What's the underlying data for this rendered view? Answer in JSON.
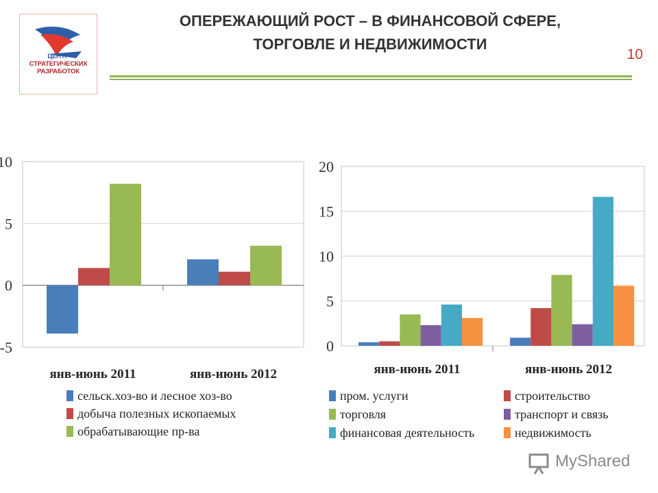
{
  "slide": {
    "title_line1": "ОПЕРЕЖАЮЩИЙ РОСТ – В ФИНАНСОВОЙ СФЕРЕ,",
    "title_line2": "ТОРГОВЛЕ И НЕДВИЖИМОСТИ",
    "page_number": "10",
    "logo": {
      "line1": "ЦЕНТР",
      "line2": "СТРАТЕГИЧЕСКИХ",
      "line3": "РАЗРАБОТОК"
    },
    "watermark": "MyShared"
  },
  "colors": {
    "blue": "#4a7ebb",
    "red": "#be4b48",
    "green": "#98b954",
    "purple": "#7d5fa0",
    "teal": "#46aac5",
    "orange": "#f69240",
    "accent_line": "#8cb050",
    "page_number": "#c0392b"
  },
  "chart_data": [
    {
      "type": "bar",
      "categories": [
        "янв-июнь 2011",
        "янв-июнь 2012"
      ],
      "ylim": [
        -5,
        10
      ],
      "yticks": [
        "-5",
        "0",
        "5",
        "10"
      ],
      "grid": true,
      "legend_position": "bottom",
      "series": [
        {
          "name": "сельск.хоз-во и лесное хоз-во",
          "color": "#4a7ebb",
          "values": [
            -3.9,
            2.1
          ]
        },
        {
          "name": "добыча полезных ископаемых",
          "color": "#be4b48",
          "values": [
            1.4,
            1.1
          ]
        },
        {
          "name": "обрабатывающие пр-ва",
          "color": "#98b954",
          "values": [
            8.2,
            3.2
          ]
        }
      ]
    },
    {
      "type": "bar",
      "categories": [
        "янв-июнь 2011",
        "янв-июнь 2012"
      ],
      "ylim": [
        0,
        20
      ],
      "yticks": [
        "0",
        "5",
        "10",
        "15",
        "20"
      ],
      "grid": true,
      "legend_position": "bottom",
      "series": [
        {
          "name": "пром. услуги",
          "color": "#4a7ebb",
          "values": [
            0.4,
            0.9
          ]
        },
        {
          "name": "строительство",
          "color": "#be4b48",
          "values": [
            0.5,
            4.2
          ]
        },
        {
          "name": "торговля",
          "color": "#98b954",
          "values": [
            3.5,
            7.9
          ]
        },
        {
          "name": "транспорт и связь",
          "color": "#7d5fa0",
          "values": [
            2.3,
            2.4
          ]
        },
        {
          "name": "финансовая деятельность",
          "color": "#46aac5",
          "values": [
            4.6,
            16.6
          ]
        },
        {
          "name": "недвижимость",
          "color": "#f69240",
          "values": [
            3.1,
            6.7
          ]
        }
      ]
    }
  ]
}
